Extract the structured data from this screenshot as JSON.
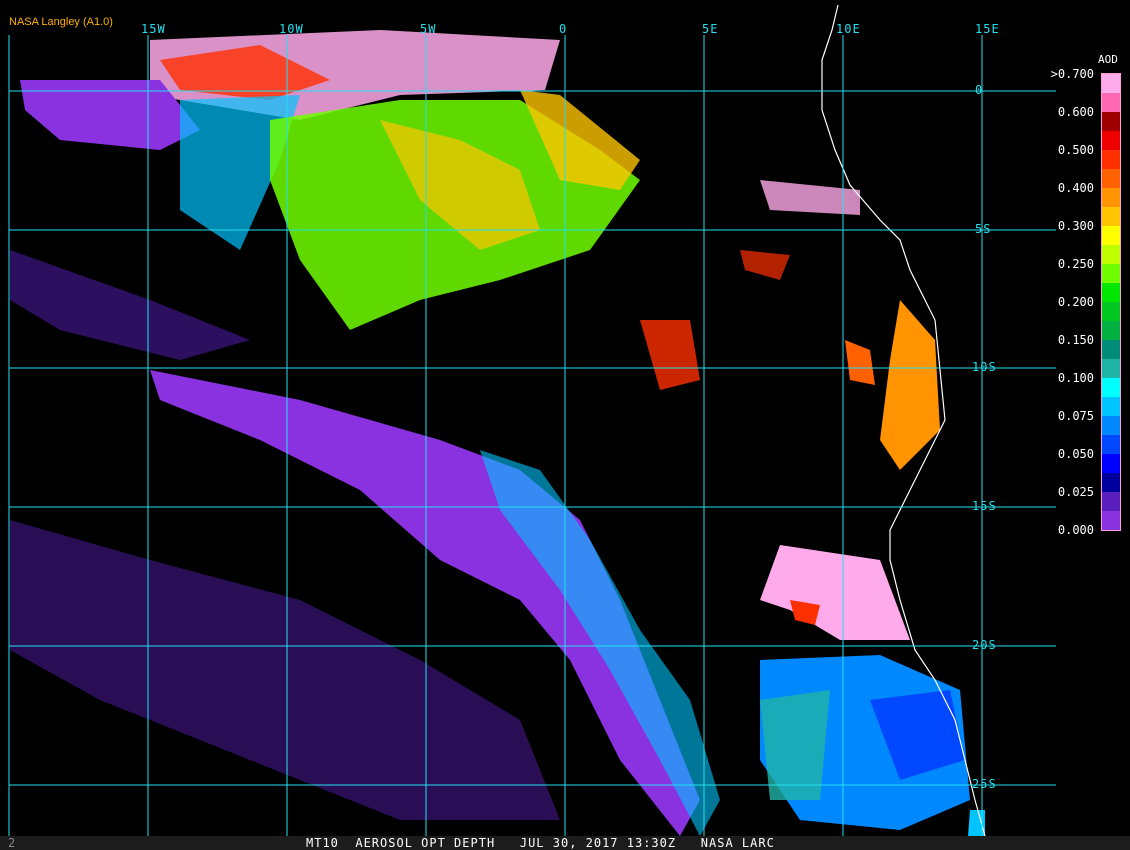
{
  "header": {
    "label": "NASA Langley (A1.0)"
  },
  "longitude_labels": [
    "15W",
    "10W",
    "5W",
    "0",
    "5E",
    "10E",
    "15E"
  ],
  "latitude_labels": [
    "0",
    "5S",
    "10S",
    "15S",
    "20S",
    "25S"
  ],
  "legend": {
    "title": "AOD",
    "ticks": [
      ">0.700",
      "0.600",
      "0.500",
      "0.400",
      "0.300",
      "0.250",
      "0.200",
      "0.150",
      "0.100",
      "0.075",
      "0.050",
      "0.025",
      "0.000"
    ],
    "colors": [
      "#ffaaea",
      "#ff69b4",
      "#a00000",
      "#ee0000",
      "#ff3000",
      "#ff6000",
      "#ff9400",
      "#ffc400",
      "#ffff00",
      "#c0ff00",
      "#70ff00",
      "#00e600",
      "#00c820",
      "#00b040",
      "#008c78",
      "#20b4a8",
      "#00ffff",
      "#00c4ff",
      "#0088ff",
      "#0048ff",
      "#0000ff",
      "#0000a0",
      "#5a1ebe",
      "#8a32e0"
    ]
  },
  "footer": {
    "frame_number": "2",
    "title": "MT10  AEROSOL OPT DEPTH   JUL 30, 2017 13:30Z   NASA LARC"
  },
  "colors": {
    "grid": "#22e0f0",
    "coastline": "#ffffff",
    "header": "#ffb000"
  }
}
